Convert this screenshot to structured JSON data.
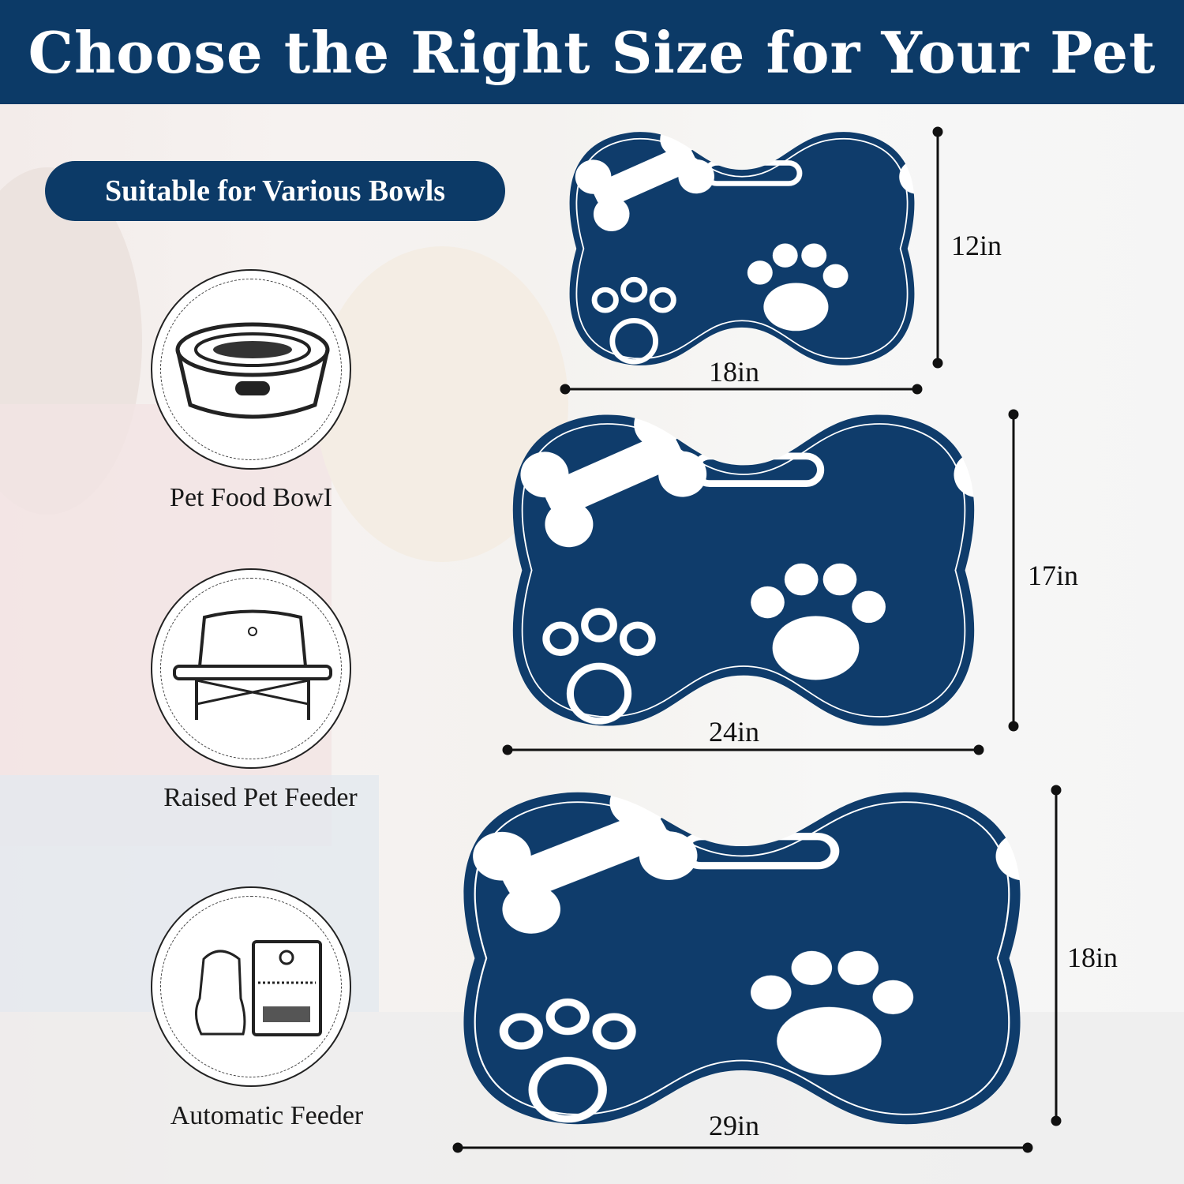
{
  "header": {
    "title": "Choose the Right Size for Your Pet"
  },
  "badge": {
    "label": "Suitable for Various Bowls"
  },
  "bowl_types": [
    {
      "label": "Pet Food BowI",
      "icon": "pet-food-bowl-icon"
    },
    {
      "label": "Raised Pet Feeder",
      "icon": "raised-feeder-icon"
    },
    {
      "label": "Automatic Feeder",
      "icon": "automatic-feeder-icon"
    }
  ],
  "sizes": [
    {
      "width": "18in",
      "height": "12in"
    },
    {
      "width": "24in",
      "height": "17in"
    },
    {
      "width": "29in",
      "height": "18in"
    }
  ],
  "colors": {
    "brand": "#0c3a67",
    "mat": "#0f3c6b",
    "pattern": "#ffffff"
  }
}
